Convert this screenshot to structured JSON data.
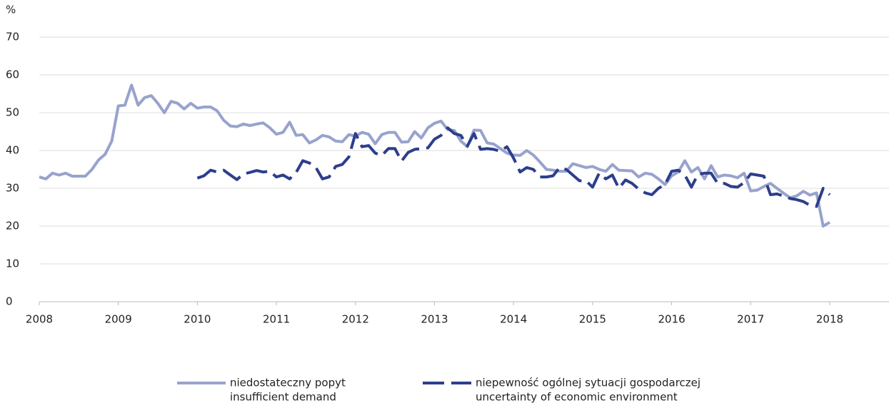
{
  "chart_data": {
    "type": "line",
    "ylabel": "%",
    "xlim": [
      2008,
      2018.75
    ],
    "xticks": [
      2008,
      2009,
      2010,
      2011,
      2012,
      2013,
      2014,
      2015,
      2016,
      2017,
      2018
    ],
    "ylim": [
      0,
      70
    ],
    "yticks": [
      0,
      10,
      20,
      30,
      40,
      50,
      60,
      70
    ],
    "grid": true,
    "legend": "bottom",
    "x": [
      2008,
      2008.083,
      2008.167,
      2008.25,
      2008.333,
      2008.417,
      2008.5,
      2008.583,
      2008.667,
      2008.75,
      2008.833,
      2008.917,
      2009,
      2009.083,
      2009.167,
      2009.25,
      2009.333,
      2009.417,
      2009.5,
      2009.583,
      2009.667,
      2009.75,
      2009.833,
      2009.917,
      2010,
      2010.083,
      2010.167,
      2010.25,
      2010.333,
      2010.417,
      2010.5,
      2010.583,
      2010.667,
      2010.75,
      2010.833,
      2010.917,
      2011,
      2011.083,
      2011.167,
      2011.25,
      2011.333,
      2011.417,
      2011.5,
      2011.583,
      2011.667,
      2011.75,
      2011.833,
      2011.917,
      2012,
      2012.083,
      2012.167,
      2012.25,
      2012.333,
      2012.417,
      2012.5,
      2012.583,
      2012.667,
      2012.75,
      2012.833,
      2012.917,
      2013,
      2013.083,
      2013.167,
      2013.25,
      2013.333,
      2013.417,
      2013.5,
      2013.583,
      2013.667,
      2013.75,
      2013.833,
      2013.917,
      2014,
      2014.083,
      2014.167,
      2014.25,
      2014.333,
      2014.417,
      2014.5,
      2014.583,
      2014.667,
      2014.75,
      2014.833,
      2014.917,
      2015,
      2015.083,
      2015.167,
      2015.25,
      2015.333,
      2015.417,
      2015.5,
      2015.583,
      2015.667,
      2015.75,
      2015.833,
      2015.917,
      2016,
      2016.083,
      2016.167,
      2016.25,
      2016.333,
      2016.417,
      2016.5,
      2016.583,
      2016.667,
      2016.75,
      2016.833,
      2016.917,
      2017,
      2017.083,
      2017.167,
      2017.25,
      2017.333,
      2017.417,
      2017.5,
      2017.583,
      2017.667,
      2017.75,
      2017.833,
      2017.917,
      2018
    ],
    "series": [
      {
        "name": [
          "niedostateczny popyt",
          "insufficient demand"
        ],
        "color": "#98a3cc",
        "dash": false,
        "values": [
          33,
          32.5,
          34,
          33.5,
          34,
          33.2,
          33.2,
          33.2,
          35,
          37.5,
          39,
          42.5,
          51.8,
          52,
          57.3,
          52,
          54,
          54.5,
          52.5,
          50,
          53,
          52.5,
          51,
          52.5,
          51.2,
          51.5,
          51.5,
          50.5,
          48,
          46.5,
          46.3,
          47,
          46.6,
          47,
          47.3,
          46,
          44.3,
          44.8,
          47.5,
          44,
          44.2,
          42,
          42.8,
          44,
          43.6,
          42.5,
          42.3,
          44.2,
          43.8,
          44.8,
          44.3,
          41.8,
          44.2,
          44.8,
          44.8,
          42.2,
          42.3,
          45,
          43.3,
          46,
          47.2,
          47.8,
          45.5,
          45.3,
          42.5,
          41,
          45.4,
          45.3,
          42,
          41.7,
          40.5,
          39.3,
          38.8,
          38.7,
          40,
          38.8,
          37,
          35,
          34.8,
          34.5,
          34.5,
          36.5,
          36,
          35.5,
          35.8,
          35,
          34.5,
          36.3,
          34.8,
          34.7,
          34.6,
          33,
          34,
          33.7,
          32.5,
          31,
          33.3,
          34.3,
          37.3,
          34.3,
          35.5,
          32.5,
          36,
          33,
          33.5,
          33.3,
          32.8,
          34,
          29.3,
          29.5,
          30.5,
          31.3,
          30,
          28.7,
          27.5,
          28,
          29.2,
          28.2,
          28.8,
          20,
          21
        ]
      },
      {
        "name": [
          "niepewność ogólnej sytuacji gospodarczej",
          "uncertainty of economic environment"
        ],
        "color": "#2c3e8c",
        "dash": true,
        "values": [
          null,
          null,
          null,
          null,
          null,
          null,
          null,
          null,
          null,
          null,
          null,
          null,
          null,
          null,
          null,
          null,
          null,
          null,
          null,
          null,
          null,
          null,
          null,
          null,
          32.7,
          33.3,
          34.8,
          34.3,
          34.8,
          33.5,
          32.3,
          33.8,
          34.2,
          34.7,
          34.3,
          34.5,
          33,
          33.5,
          32.5,
          34.2,
          37.3,
          36.7,
          35.5,
          32.5,
          33,
          35.8,
          36.3,
          38.3,
          44.5,
          41,
          41.3,
          39.3,
          38.7,
          40.5,
          40.5,
          37.2,
          39.5,
          40.3,
          40.5,
          40.7,
          43,
          44,
          46,
          44.5,
          44,
          41.2,
          44.5,
          40.3,
          40.5,
          40.3,
          39.8,
          41,
          38,
          34.3,
          35.5,
          35,
          33,
          33,
          33.3,
          35.5,
          35,
          33.5,
          32,
          32,
          30.3,
          34,
          32.5,
          33.5,
          30,
          32.2,
          31.3,
          29.8,
          28.8,
          28.3,
          30,
          31,
          34.5,
          34.8,
          33.5,
          30.3,
          33.7,
          34,
          34,
          31.3,
          31.3,
          30.5,
          30.3,
          31.5,
          33.8,
          33.5,
          33.2,
          28.3,
          28.5,
          28,
          27.3,
          27,
          26.5,
          25.5,
          25.2,
          30,
          28.3
        ]
      }
    ]
  }
}
